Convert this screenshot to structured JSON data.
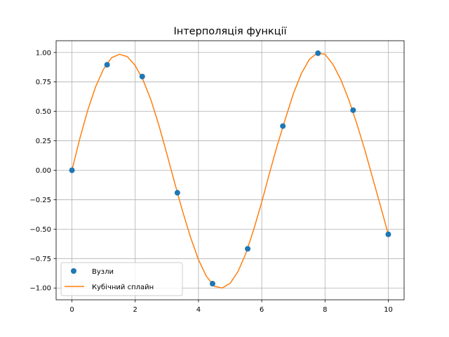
{
  "chart_data": {
    "type": "line",
    "title": "Інтерполяція функції",
    "xlabel": "",
    "ylabel": "",
    "xlim": [
      -0.5,
      10.5
    ],
    "ylim": [
      -1.1,
      1.1
    ],
    "grid": true,
    "legend_position": "lower-left",
    "x_ticks": [
      0,
      2,
      4,
      6,
      8,
      10
    ],
    "x_tick_labels": [
      "0",
      "2",
      "4",
      "6",
      "8",
      "10"
    ],
    "y_ticks": [
      1.0,
      0.75,
      0.5,
      0.25,
      0.0,
      -0.25,
      -0.5,
      -0.75,
      -1.0
    ],
    "y_tick_labels": [
      "1.00",
      "0.75",
      "0.50",
      "0.25",
      "0.00",
      "−0.25",
      "−0.50",
      "−0.75",
      "−1.00"
    ],
    "series": [
      {
        "name": "Вузли",
        "kind": "scatter",
        "color": "#1f77b4",
        "x": [
          0,
          1.111,
          2.222,
          3.333,
          4.444,
          5.556,
          6.667,
          7.778,
          8.889,
          10
        ],
        "y": [
          0.0,
          0.896,
          0.796,
          -0.191,
          -0.963,
          -0.667,
          0.375,
          0.994,
          0.51,
          -0.544
        ]
      },
      {
        "name": "Кубічний сплайн",
        "kind": "line",
        "color": "#ff7f0e",
        "x": [
          0,
          0.25,
          0.5,
          0.75,
          1.0,
          1.25,
          1.5,
          1.75,
          2.0,
          2.25,
          2.5,
          2.75,
          3.0,
          3.25,
          3.5,
          3.75,
          4.0,
          4.25,
          4.5,
          4.75,
          5.0,
          5.25,
          5.5,
          5.75,
          6.0,
          6.25,
          6.5,
          6.75,
          7.0,
          7.25,
          7.5,
          7.75,
          8.0,
          8.25,
          8.5,
          8.75,
          9.0,
          9.25,
          9.5,
          9.75,
          10.0
        ],
        "y": [
          0.0,
          0.27,
          0.51,
          0.71,
          0.86,
          0.955,
          0.985,
          0.965,
          0.89,
          0.765,
          0.595,
          0.38,
          0.14,
          -0.11,
          -0.35,
          -0.57,
          -0.76,
          -0.9,
          -0.985,
          -1.0,
          -0.96,
          -0.86,
          -0.705,
          -0.5,
          -0.27,
          -0.02,
          0.22,
          0.44,
          0.65,
          0.82,
          0.94,
          0.995,
          0.985,
          0.9,
          0.77,
          0.6,
          0.4,
          0.18,
          -0.06,
          -0.3,
          -0.544
        ]
      }
    ]
  }
}
